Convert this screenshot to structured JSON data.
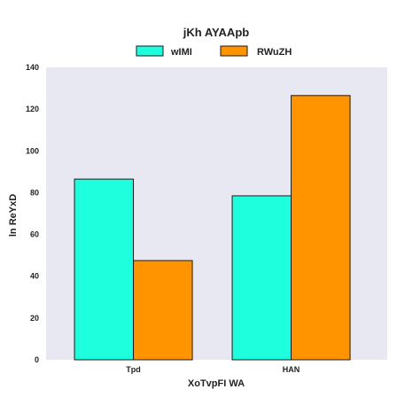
{
  "chart_data": {
    "type": "bar",
    "title": "jKh AYAApb",
    "xlabel": "XoTvpFI WA",
    "ylabel": "ln ReYxD",
    "categories": [
      "Tpd",
      "HAN"
    ],
    "series": [
      {
        "name": "wIMI",
        "values": [
          86.5,
          78.5
        ],
        "color": "#1effde"
      },
      {
        "name": "RWuZH",
        "values": [
          47.5,
          126.5
        ],
        "color": "#ff9400"
      }
    ],
    "ylim": [
      0,
      140
    ],
    "yticks": [
      0,
      20,
      40,
      60,
      80,
      100,
      120,
      140
    ],
    "grid": false,
    "legend_position": "top-center",
    "plot_background": "#e8e8f2",
    "bar_edge_color": "#1a1a1a"
  }
}
